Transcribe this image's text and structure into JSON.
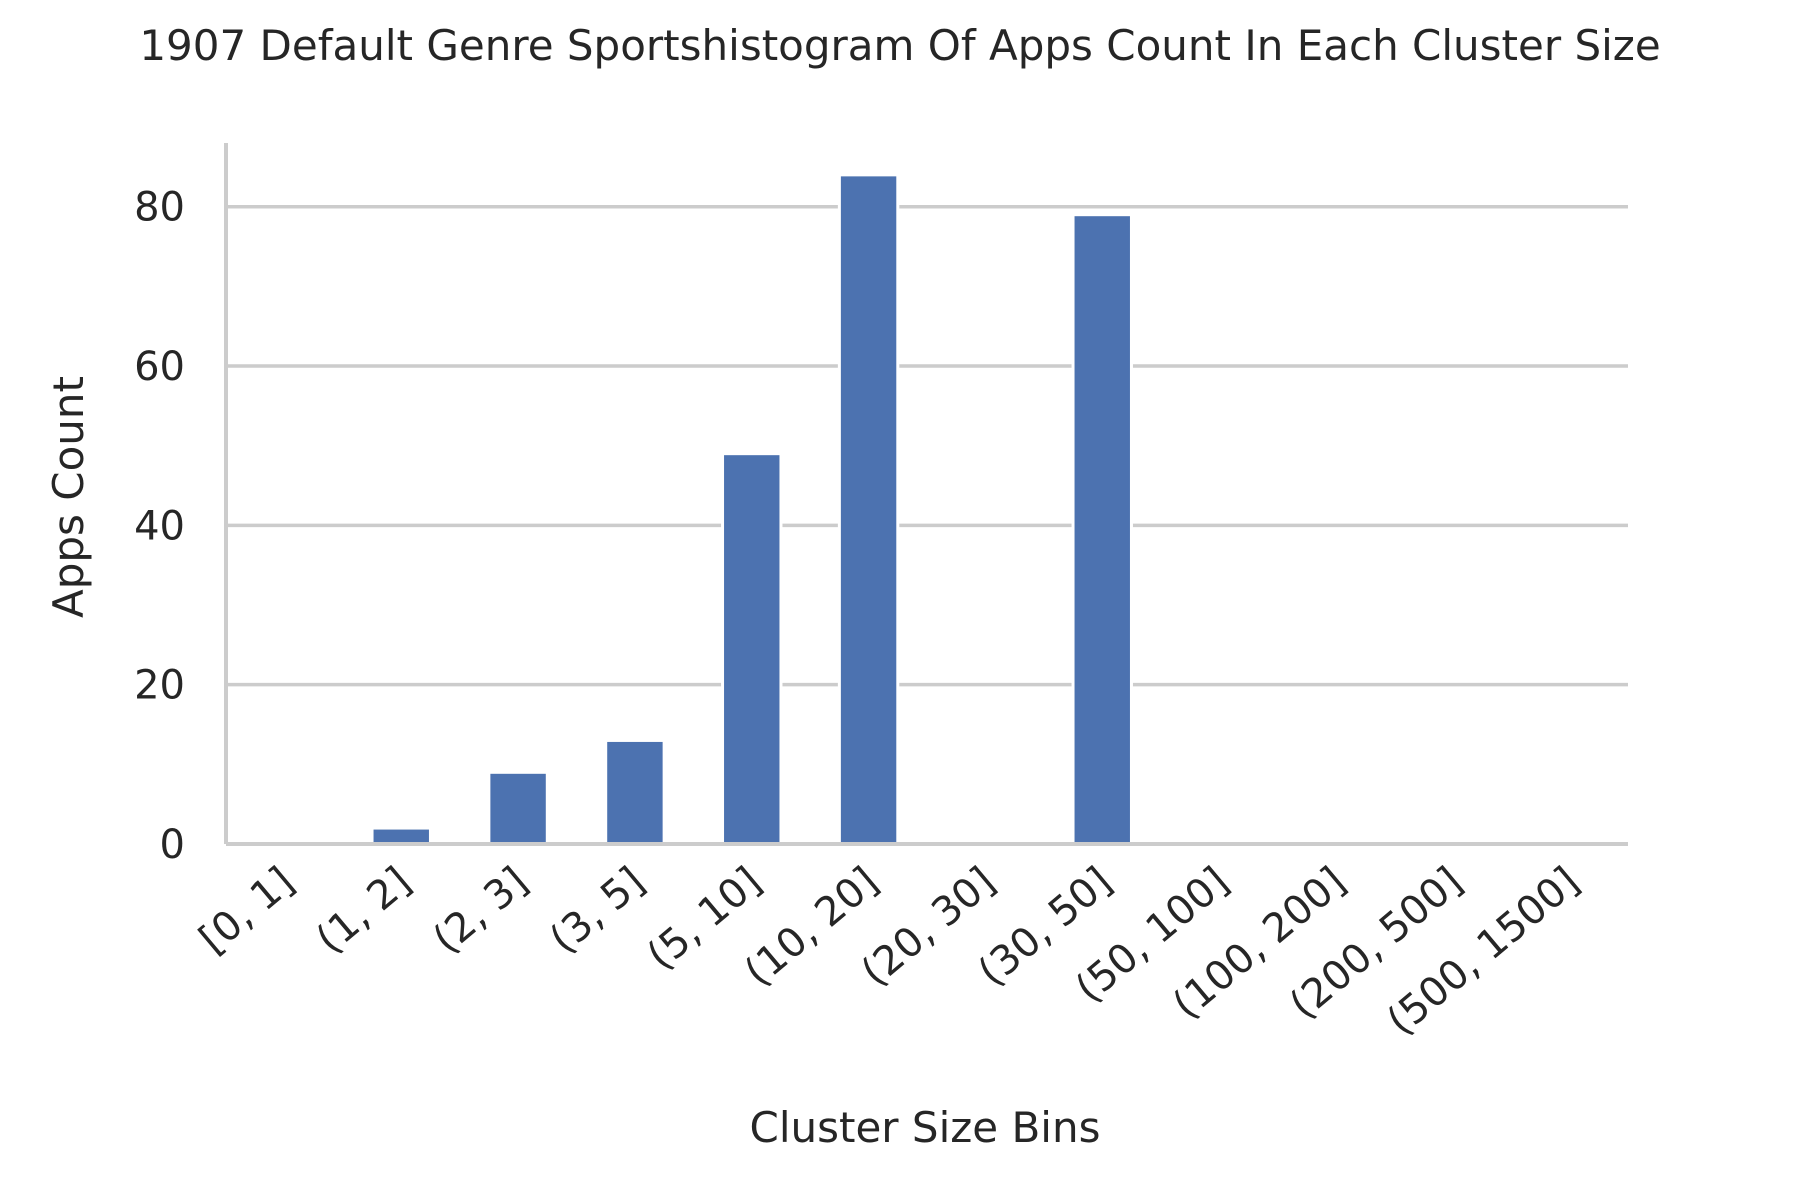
{
  "chart_data": {
    "type": "bar",
    "title": "1907 Default Genre Sportshistogram Of Apps Count In Each Cluster Size",
    "xlabel": "Cluster Size Bins",
    "ylabel": "Apps Count",
    "categories": [
      "[0, 1]",
      "(1, 2]",
      "(2, 3]",
      "(3, 5]",
      "(5, 10]",
      "(10, 20]",
      "(20, 30]",
      "(30, 50]",
      "(50, 100]",
      "(100, 200]",
      "(200, 500]",
      "(500, 1500]"
    ],
    "values": [
      0,
      2,
      9,
      13,
      49,
      84,
      0,
      79,
      0,
      0,
      0,
      0
    ],
    "ylim": [
      0,
      88
    ],
    "yticks": [
      0,
      20,
      40,
      60,
      80
    ],
    "grid": "horizontal",
    "bar_color": "#4c72b0",
    "grid_color": "#cccccc",
    "axis_color": "#cccccc"
  }
}
